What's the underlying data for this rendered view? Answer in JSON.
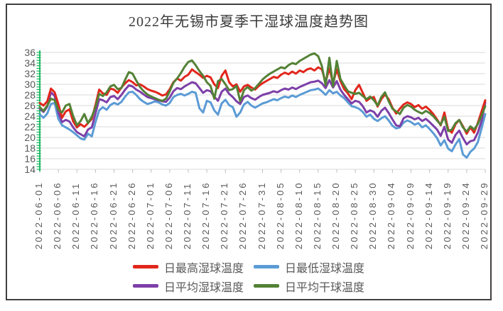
{
  "chart_data": {
    "type": "line",
    "title": "2022年无锡市夏季干湿球温度趋势图",
    "ylim": [
      14,
      36
    ],
    "y_ticks": [
      36,
      34,
      32,
      30,
      28,
      26,
      24,
      22,
      20,
      18,
      16,
      14
    ],
    "y_axis_minor_tick_step": 0.5,
    "grid": "horizontal",
    "legend_position": "bottom",
    "axis_color": "#00B050",
    "gridline_color": "#D9D9D9",
    "tick_mark_color": "#BFBFBF",
    "tick_label_color": "#595959",
    "x_tick_labels": [
      "2022-06-01",
      "2022-06-06",
      "2022-06-11",
      "2022-06-16",
      "2022-06-21",
      "2022-06-26",
      "2022-07-01",
      "2022-07-06",
      "2022-07-11",
      "2022-07-16",
      "2022-07-21",
      "2022-07-26",
      "2022-07-31",
      "2022-08-05",
      "2022-08-10",
      "2022-08-15",
      "2022-08-20",
      "2022-08-25",
      "2022-08-30",
      "2022-09-04",
      "2022-09-09",
      "2022-09-14",
      "2022-09-19",
      "2022-09-24",
      "2022-09-29"
    ],
    "x": [
      "2022-06-01",
      "2022-06-02",
      "2022-06-03",
      "2022-06-04",
      "2022-06-05",
      "2022-06-06",
      "2022-06-07",
      "2022-06-08",
      "2022-06-09",
      "2022-06-10",
      "2022-06-11",
      "2022-06-12",
      "2022-06-13",
      "2022-06-14",
      "2022-06-15",
      "2022-06-16",
      "2022-06-17",
      "2022-06-18",
      "2022-06-19",
      "2022-06-20",
      "2022-06-21",
      "2022-06-22",
      "2022-06-23",
      "2022-06-24",
      "2022-06-25",
      "2022-06-26",
      "2022-06-27",
      "2022-06-28",
      "2022-06-29",
      "2022-06-30",
      "2022-07-01",
      "2022-07-02",
      "2022-07-03",
      "2022-07-04",
      "2022-07-05",
      "2022-07-06",
      "2022-07-07",
      "2022-07-08",
      "2022-07-09",
      "2022-07-10",
      "2022-07-11",
      "2022-07-12",
      "2022-07-13",
      "2022-07-14",
      "2022-07-15",
      "2022-07-16",
      "2022-07-17",
      "2022-07-18",
      "2022-07-19",
      "2022-07-20",
      "2022-07-21",
      "2022-07-22",
      "2022-07-23",
      "2022-07-24",
      "2022-07-25",
      "2022-07-26",
      "2022-07-27",
      "2022-07-28",
      "2022-07-29",
      "2022-07-30",
      "2022-07-31",
      "2022-08-01",
      "2022-08-02",
      "2022-08-03",
      "2022-08-04",
      "2022-08-05",
      "2022-08-06",
      "2022-08-07",
      "2022-08-08",
      "2022-08-09",
      "2022-08-10",
      "2022-08-11",
      "2022-08-12",
      "2022-08-13",
      "2022-08-14",
      "2022-08-15",
      "2022-08-16",
      "2022-08-17",
      "2022-08-18",
      "2022-08-19",
      "2022-08-20",
      "2022-08-21",
      "2022-08-22",
      "2022-08-23",
      "2022-08-24",
      "2022-08-25",
      "2022-08-26",
      "2022-08-27",
      "2022-08-28",
      "2022-08-29",
      "2022-08-30",
      "2022-08-31",
      "2022-09-01",
      "2022-09-02",
      "2022-09-03",
      "2022-09-04",
      "2022-09-05",
      "2022-09-06",
      "2022-09-07",
      "2022-09-08",
      "2022-09-09",
      "2022-09-10",
      "2022-09-11",
      "2022-09-12",
      "2022-09-13",
      "2022-09-14",
      "2022-09-15",
      "2022-09-16",
      "2022-09-17",
      "2022-09-18",
      "2022-09-19",
      "2022-09-20",
      "2022-09-21",
      "2022-09-22",
      "2022-09-23",
      "2022-09-24",
      "2022-09-25",
      "2022-09-26",
      "2022-09-27",
      "2022-09-28",
      "2022-09-29"
    ],
    "series": [
      {
        "name": "日最高湿球温度",
        "color": "#E2261C",
        "values": [
          26.5,
          26.0,
          26.8,
          29.2,
          28.5,
          26.3,
          23.7,
          24.9,
          25.3,
          23.0,
          21.9,
          22.5,
          22.0,
          22.7,
          23.5,
          26.1,
          29.0,
          28.3,
          28.0,
          29.2,
          29.0,
          28.4,
          29.4,
          30.2,
          30.8,
          30.4,
          29.8,
          30.0,
          29.6,
          29.1,
          28.8,
          28.6,
          28.3,
          27.9,
          28.1,
          29.1,
          30.4,
          31.1,
          30.7,
          31.4,
          31.8,
          32.8,
          32.3,
          31.8,
          31.2,
          31.6,
          31.3,
          30.0,
          29.3,
          31.6,
          32.6,
          30.4,
          29.6,
          30.0,
          28.6,
          29.6,
          29.9,
          29.4,
          29.0,
          29.7,
          30.2,
          30.6,
          31.0,
          31.4,
          31.2,
          31.8,
          32.2,
          31.9,
          32.4,
          32.0,
          32.6,
          32.3,
          32.8,
          33.0,
          32.6,
          33.2,
          32.8,
          30.4,
          33.0,
          30.2,
          32.8,
          30.6,
          29.1,
          28.3,
          27.2,
          28.9,
          29.9,
          28.4,
          26.9,
          27.4,
          27.6,
          25.8,
          27.2,
          28.1,
          27.2,
          25.6,
          24.5,
          25.4,
          26.2,
          26.6,
          26.3,
          25.7,
          26.1,
          25.4,
          25.8,
          25.2,
          24.4,
          23.4,
          22.3,
          24.7,
          21.5,
          20.9,
          22.5,
          23.3,
          22.1,
          20.7,
          21.9,
          20.9,
          22.7,
          24.9,
          27.0
        ]
      },
      {
        "name": "日最低湿球温度",
        "color": "#5B9BD5",
        "values": [
          24.3,
          23.7,
          24.5,
          26.3,
          26.5,
          23.5,
          22.3,
          21.9,
          21.5,
          21.0,
          20.4,
          19.8,
          19.6,
          20.7,
          20.2,
          22.9,
          25.1,
          25.7,
          25.2,
          26.1,
          26.5,
          26.2,
          26.7,
          27.7,
          28.5,
          28.6,
          28.0,
          27.2,
          26.7,
          26.3,
          26.5,
          26.8,
          26.6,
          26.2,
          26.0,
          26.5,
          27.6,
          28.0,
          28.2,
          27.9,
          28.2,
          28.6,
          28.4,
          25.5,
          24.7,
          26.9,
          26.6,
          25.1,
          24.3,
          26.4,
          27.1,
          26.1,
          25.7,
          23.9,
          24.7,
          26.2,
          26.7,
          26.0,
          25.6,
          26.0,
          26.4,
          26.6,
          26.9,
          27.2,
          27.0,
          27.4,
          27.7,
          27.5,
          27.9,
          27.6,
          28.0,
          28.3,
          28.6,
          28.9,
          29.0,
          29.2,
          28.7,
          28.0,
          28.9,
          28.3,
          28.6,
          27.9,
          27.4,
          26.6,
          25.9,
          25.7,
          25.4,
          24.8,
          23.9,
          24.3,
          23.5,
          23.1,
          23.6,
          24.0,
          23.2,
          22.2,
          21.7,
          21.9,
          22.8,
          23.2,
          22.9,
          22.4,
          22.7,
          21.9,
          22.3,
          21.6,
          20.8,
          19.9,
          18.5,
          19.5,
          17.9,
          17.4,
          18.7,
          19.7,
          16.8,
          16.2,
          17.3,
          17.9,
          19.1,
          21.7,
          24.4
        ]
      },
      {
        "name": "日平均湿球温度",
        "color": "#7D3FA8",
        "values": [
          25.4,
          24.8,
          25.8,
          28.5,
          27.8,
          24.7,
          22.9,
          23.3,
          23.0,
          21.9,
          21.0,
          20.6,
          20.2,
          21.5,
          21.9,
          24.5,
          27.2,
          27.0,
          26.6,
          27.6,
          27.8,
          27.2,
          28.0,
          29.0,
          29.8,
          29.6,
          29.0,
          28.6,
          28.1,
          27.6,
          27.4,
          27.2,
          27.0,
          26.8,
          26.7,
          27.5,
          28.7,
          29.3,
          29.1,
          29.6,
          30.0,
          30.4,
          30.2,
          29.3,
          28.4,
          28.9,
          28.7,
          27.7,
          26.9,
          28.6,
          29.2,
          28.2,
          27.6,
          26.8,
          26.3,
          27.6,
          27.9,
          27.4,
          27.1,
          27.6,
          28.0,
          28.2,
          28.4,
          28.7,
          28.5,
          28.9,
          29.2,
          29.0,
          29.4,
          29.1,
          29.5,
          29.8,
          30.1,
          30.4,
          30.5,
          30.7,
          30.2,
          29.3,
          30.8,
          29.4,
          30.6,
          29.0,
          28.0,
          27.2,
          26.4,
          26.9,
          26.7,
          25.9,
          24.7,
          25.1,
          24.8,
          23.9,
          25.0,
          25.6,
          24.6,
          23.4,
          22.3,
          22.1,
          23.6,
          24.0,
          23.8,
          23.4,
          23.7,
          23.1,
          23.5,
          22.9,
          22.2,
          21.5,
          20.3,
          22.0,
          19.6,
          19.0,
          20.5,
          21.3,
          19.9,
          18.7,
          19.3,
          19.5,
          20.9,
          23.1,
          26.6
        ]
      },
      {
        "name": "日平均干球温度",
        "color": "#538135",
        "values": [
          25.7,
          25.0,
          26.0,
          27.3,
          27.0,
          25.2,
          24.7,
          26.0,
          26.3,
          24.0,
          22.3,
          23.1,
          24.4,
          22.7,
          23.9,
          25.7,
          28.2,
          27.8,
          28.5,
          29.6,
          29.9,
          29.1,
          29.3,
          30.9,
          32.3,
          32.0,
          30.7,
          29.5,
          28.7,
          28.1,
          27.7,
          27.4,
          27.1,
          26.9,
          27.3,
          28.7,
          30.3,
          31.1,
          32.1,
          33.3,
          34.2,
          34.5,
          33.6,
          32.5,
          31.6,
          30.4,
          29.7,
          27.3,
          30.6,
          31.0,
          30.0,
          28.9,
          29.1,
          29.7,
          26.8,
          28.9,
          29.5,
          28.8,
          29.3,
          30.1,
          30.9,
          31.5,
          32.0,
          32.4,
          32.8,
          33.2,
          33.0,
          33.6,
          34.0,
          33.8,
          34.4,
          34.8,
          35.2,
          35.6,
          35.8,
          35.3,
          33.4,
          29.8,
          35.0,
          29.6,
          34.4,
          31.0,
          29.8,
          28.7,
          28.4,
          28.2,
          28.4,
          27.8,
          27.2,
          27.7,
          27.0,
          26.0,
          27.6,
          28.5,
          26.8,
          25.4,
          24.9,
          24.4,
          25.6,
          26.1,
          25.8,
          25.2,
          24.8,
          24.5,
          25.0,
          24.6,
          24.0,
          23.2,
          22.4,
          23.9,
          21.2,
          21.5,
          22.7,
          23.3,
          21.9,
          21.1,
          22.1,
          21.5,
          22.5,
          24.1,
          25.9
        ]
      }
    ]
  }
}
